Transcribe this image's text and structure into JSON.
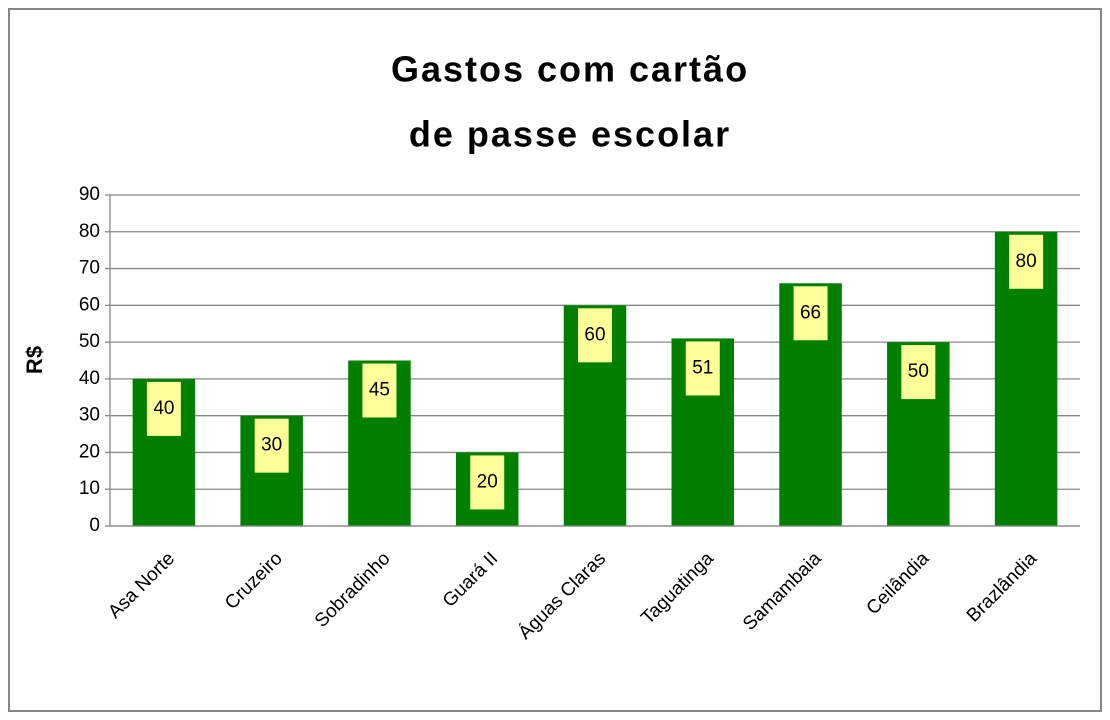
{
  "chart_data": {
    "type": "bar",
    "title": [
      "Gastos com cartão",
      "de passe escolar"
    ],
    "y_label": "R$",
    "categories": [
      "Asa Norte",
      "Cruzeiro",
      "Sobradinho",
      "Guará II",
      "Águas Claras",
      "Taguatinga",
      "Samambaia",
      "Ceilândia",
      "Brazlândia"
    ],
    "values": [
      40,
      30,
      45,
      20,
      60,
      51,
      66,
      50,
      80
    ],
    "color": "#007f00",
    "label_color": "#ffff99",
    "ylim": [
      0,
      90
    ],
    "yticks": [
      0,
      10,
      20,
      30,
      40,
      50,
      60,
      70,
      80,
      90
    ],
    "grid": true
  }
}
